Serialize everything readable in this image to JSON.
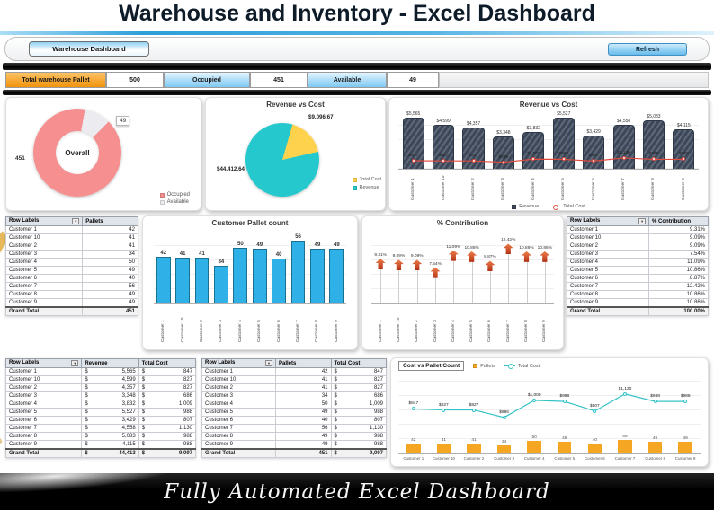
{
  "page": {
    "title": "Warehouse and Inventory - Excel Dashboard",
    "footer": "Fully Automated Excel Dashboard"
  },
  "toolbar": {
    "dashboard_button": "Warehouse Dashboard",
    "refresh_button": "Refresh"
  },
  "kpi": {
    "total_label": "Total warehouse Pallet",
    "total_value": "500",
    "occupied_label": "Occupied",
    "occupied_value": "451",
    "available_label": "Available",
    "available_value": "49"
  },
  "icons": {
    "filter_dropdown": "▼",
    "currency": "$"
  },
  "colors": {
    "accent_blue": "#2d9fd9",
    "kpi_orange": "#f2930c",
    "occupied_pink": "#f58f90",
    "available_gray": "#ececf0",
    "pie_yellow": "#ffd24d",
    "pie_teal": "#25c8cc",
    "bar_navy": "#3c4759",
    "line_red": "#e04b3e",
    "pallet_blue": "#2fb1e8",
    "marker_red": "#cc3f1f",
    "pallets_orange": "#f5a623",
    "cost_teal": "#33c3c7"
  },
  "chart_data": [
    {
      "type": "donut",
      "title": "Overall",
      "labels": [
        "Occupied",
        "Available"
      ],
      "values": [
        451,
        49
      ],
      "colors": [
        "#f58f90",
        "#ececf0"
      ],
      "legend_position": "bottom-right"
    },
    {
      "type": "pie",
      "title": "Revenue vs Cost",
      "labels": [
        "Total Cost",
        "Revenue"
      ],
      "values": [
        9096.67,
        44412.64
      ],
      "value_labels": [
        "$9,096.67",
        "$44,412.64"
      ],
      "colors": [
        "#ffd24d",
        "#25c8cc"
      ],
      "legend_position": "right"
    },
    {
      "type": "bar-line",
      "title": "Revenue vs Cost",
      "categories": [
        "Customer 1",
        "Customer 10",
        "Customer 2",
        "Customer 3",
        "Customer 4",
        "Customer 5",
        "Customer 6",
        "Customer 7",
        "Customer 8",
        "Customer 9"
      ],
      "ylim": [
        0,
        6000
      ],
      "series": [
        {
          "name": "Revenue",
          "kind": "bar",
          "color": "#3c4759",
          "values": [
            5565,
            4599,
            4357,
            3348,
            3832,
            5527,
            3429,
            4558,
            5083,
            4115
          ],
          "labels": [
            "$5,565",
            "$4,599",
            "$4,357",
            "$3,348",
            "$3,832",
            "$5,527",
            "$3,429",
            "$4,558",
            "$5,083",
            "$4,115"
          ]
        },
        {
          "name": "Total Cost",
          "kind": "line",
          "color": "#e04b3e",
          "values": [
            847,
            827,
            827,
            686,
            1009,
            988,
            807,
            1130,
            988,
            988
          ],
          "labels": [
            "$847",
            "$827",
            "$827",
            "$686",
            "$1,009",
            "$988",
            "$807",
            "$1,130",
            "$988",
            "$988"
          ]
        }
      ],
      "legend_position": "bottom"
    },
    {
      "type": "bar",
      "title": "Customer Pallet count",
      "categories": [
        "Customer 1",
        "Customer 10",
        "Customer 2",
        "Customer 3",
        "Customer 4",
        "Customer 5",
        "Customer 6",
        "Customer 7",
        "Customer 8",
        "Customer 9"
      ],
      "ylim": [
        0,
        62
      ],
      "color": "#2fb1e8",
      "values": [
        42,
        41,
        41,
        34,
        50,
        49,
        40,
        56,
        49,
        49
      ],
      "labels": [
        "42",
        "41",
        "41",
        "34",
        "50",
        "49",
        "40",
        "56",
        "49",
        "49"
      ]
    },
    {
      "type": "marker",
      "title": "% Contribution",
      "categories": [
        "Customer 1",
        "Customer 10",
        "Customer 2",
        "Customer 3",
        "Customer 4",
        "Customer 5",
        "Customer 6",
        "Customer 7",
        "Customer 8",
        "Customer 9"
      ],
      "ylim": [
        0,
        14
      ],
      "color": "#cc3f1f",
      "values": [
        9.31,
        9.09,
        9.09,
        7.54,
        11.09,
        10.86,
        8.87,
        12.42,
        10.86,
        10.86
      ],
      "labels": [
        "9.31%",
        "9.09%",
        "9.09%",
        "7.54%",
        "11.09%",
        "10.86%",
        "8.87%",
        "12.42%",
        "10.86%",
        "10.86%"
      ]
    },
    {
      "type": "line-bar",
      "title": "Cost vs Pallet Count",
      "categories": [
        "Customer 1",
        "Customer 10",
        "Customer 2",
        "Customer 3",
        "Customer 4",
        "Customer 5",
        "Customer 6",
        "Customer 7",
        "Customer 8",
        "Customer 9"
      ],
      "series": [
        {
          "name": "Pallets",
          "kind": "bar",
          "color": "#f5a623",
          "ylim": [
            0,
            300
          ],
          "values": [
            42,
            41,
            41,
            34,
            50,
            49,
            40,
            56,
            49,
            49
          ],
          "labels": [
            "42",
            "41",
            "41",
            "34",
            "50",
            "49",
            "40",
            "56",
            "49",
            "49"
          ]
        },
        {
          "name": "Total Cost",
          "kind": "line",
          "color": "#33c3c7",
          "ylim": [
            0,
            1400
          ],
          "values": [
            847,
            827,
            827,
            686,
            1009,
            988,
            807,
            1130,
            988,
            988
          ],
          "labels": [
            "$847",
            "$827",
            "$827",
            "$686",
            "$1,009",
            "$988",
            "$807",
            "$1,130",
            "$988",
            "$988"
          ]
        }
      ],
      "legend_position": "top"
    }
  ],
  "tables": {
    "pallets": {
      "headers": [
        "Row Labels",
        "Pallets"
      ],
      "rows": [
        [
          "Customer 1",
          "42"
        ],
        [
          "Customer 10",
          "41"
        ],
        [
          "Customer 2",
          "41"
        ],
        [
          "Customer 3",
          "34"
        ],
        [
          "Customer 4",
          "50"
        ],
        [
          "Customer 5",
          "49"
        ],
        [
          "Customer 6",
          "40"
        ],
        [
          "Customer 7",
          "56"
        ],
        [
          "Customer 8",
          "49"
        ],
        [
          "Customer 9",
          "49"
        ]
      ],
      "footer": [
        "Grand Total",
        "451"
      ]
    },
    "contribution": {
      "headers": [
        "Row Labels",
        "% Contribution"
      ],
      "rows": [
        [
          "Customer 1",
          "9.31%"
        ],
        [
          "Customer 10",
          "9.09%"
        ],
        [
          "Customer 2",
          "9.09%"
        ],
        [
          "Customer 3",
          "7.54%"
        ],
        [
          "Customer 4",
          "11.09%"
        ],
        [
          "Customer 5",
          "10.86%"
        ],
        [
          "Customer 6",
          "8.87%"
        ],
        [
          "Customer 7",
          "12.42%"
        ],
        [
          "Customer 8",
          "10.86%"
        ],
        [
          "Customer 9",
          "10.86%"
        ]
      ],
      "footer": [
        "Grand Total",
        "100.00%"
      ]
    },
    "revenue_cost": {
      "headers": [
        "Row Labels",
        "Revenue",
        "Total Cost"
      ],
      "money_cols": [
        1,
        2
      ],
      "rows": [
        [
          "Customer 1",
          "5,565",
          "847"
        ],
        [
          "Customer 10",
          "4,599",
          "827"
        ],
        [
          "Customer 2",
          "4,357",
          "827"
        ],
        [
          "Customer 3",
          "3,348",
          "686"
        ],
        [
          "Customer 4",
          "3,832",
          "1,009"
        ],
        [
          "Customer 5",
          "5,527",
          "988"
        ],
        [
          "Customer 6",
          "3,429",
          "807"
        ],
        [
          "Customer 7",
          "4,558",
          "1,130"
        ],
        [
          "Customer 8",
          "5,083",
          "988"
        ],
        [
          "Customer 9",
          "4,115",
          "988"
        ]
      ],
      "footer": [
        "Grand Total",
        "44,413",
        "9,097"
      ]
    },
    "pallets_cost": {
      "headers": [
        "Row Labels",
        "Pallets",
        "Total Cost"
      ],
      "money_cols": [
        2
      ],
      "rows": [
        [
          "Customer 1",
          "42",
          "847"
        ],
        [
          "Customer 10",
          "41",
          "827"
        ],
        [
          "Customer 2",
          "41",
          "827"
        ],
        [
          "Customer 3",
          "34",
          "686"
        ],
        [
          "Customer 4",
          "50",
          "1,009"
        ],
        [
          "Customer 5",
          "49",
          "988"
        ],
        [
          "Customer 6",
          "40",
          "807"
        ],
        [
          "Customer 7",
          "56",
          "1,130"
        ],
        [
          "Customer 8",
          "49",
          "988"
        ],
        [
          "Customer 9",
          "49",
          "988"
        ]
      ],
      "footer": [
        "Grand Total",
        "451",
        "9,097"
      ]
    }
  }
}
